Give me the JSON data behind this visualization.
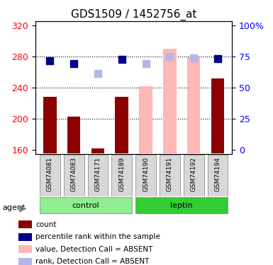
{
  "title": "GDS1509 / 1452756_at",
  "samples": [
    "GSM74081",
    "GSM74083",
    "GSM74171",
    "GSM74189",
    "GSM74190",
    "GSM74191",
    "GSM74192",
    "GSM74194"
  ],
  "groups": {
    "control": [
      "GSM74081",
      "GSM74083",
      "GSM74171",
      "GSM74189"
    ],
    "leptin": [
      "GSM74190",
      "GSM74191",
      "GSM74192",
      "GSM74194"
    ]
  },
  "bar_values": [
    228,
    203,
    162,
    228,
    160,
    160,
    160,
    252
  ],
  "bar_colors": [
    "#8B0000",
    "#8B0000",
    "#8B0000",
    "#8B0000",
    "#ffb6b6",
    "#ffb6b6",
    "#ffb6b6",
    "#8B0000"
  ],
  "rank_values": [
    274,
    271,
    null,
    276,
    null,
    null,
    null,
    277
  ],
  "rank_colors_present": "#00008B",
  "absent_rank_values": [
    null,
    null,
    258,
    null,
    271,
    280,
    278,
    null
  ],
  "absent_rank_color": "#b0b8e8",
  "absent_bar_values": [
    null,
    null,
    null,
    null,
    242,
    290,
    279,
    null
  ],
  "ymin": 155,
  "ymax": 325,
  "yticks": [
    160,
    200,
    240,
    280,
    320
  ],
  "right_yticks": [
    0,
    25,
    50,
    75,
    100
  ],
  "right_ylabels": [
    "0",
    "25",
    "50",
    "75",
    "100%"
  ],
  "group_colors": {
    "control": "#90EE90",
    "leptin": "#32CD32"
  },
  "group_light": "#b8f0b8",
  "legend_items": [
    {
      "label": "count",
      "color": "#8B0000",
      "type": "rect"
    },
    {
      "label": "percentile rank within the sample",
      "color": "#00008B",
      "type": "rect"
    },
    {
      "label": "value, Detection Call = ABSENT",
      "color": "#ffb6b6",
      "type": "rect"
    },
    {
      "label": "rank, Detection Call = ABSENT",
      "color": "#b0b8e8",
      "type": "rect"
    }
  ],
  "xlabel_fontsize": 8,
  "title_fontsize": 11,
  "marker_size": 7
}
